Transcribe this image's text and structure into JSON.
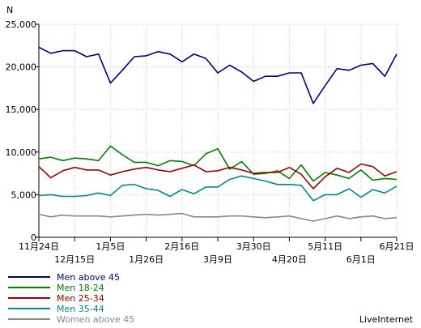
{
  "chart_data": {
    "type": "line",
    "title": "",
    "ylabel": "N",
    "xlabel": "",
    "ylim": [
      0,
      25000
    ],
    "yticks": [
      0,
      5000,
      10000,
      15000,
      20000,
      25000
    ],
    "ytick_labels": [
      "0",
      "5,000",
      "10,000",
      "15,000",
      "20,000",
      "25,000"
    ],
    "grid": true,
    "legend_position": "bottom-left",
    "watermark": "LiveInternet",
    "x_count": 31,
    "xtick_rows": [
      {
        "labels": [
          {
            "i": 0,
            "text": "11月24日"
          },
          {
            "i": 6,
            "text": "1月5日"
          },
          {
            "i": 12,
            "text": "2月16日"
          },
          {
            "i": 18,
            "text": "3月30日"
          },
          {
            "i": 24,
            "text": "5月11日"
          },
          {
            "i": 30,
            "text": "6月21日"
          }
        ]
      },
      {
        "labels": [
          {
            "i": 3,
            "text": "12月15日"
          },
          {
            "i": 9,
            "text": "1月26日"
          },
          {
            "i": 15,
            "text": "3月9日"
          },
          {
            "i": 21,
            "text": "4月20日"
          },
          {
            "i": 27,
            "text": "6月1日"
          }
        ]
      }
    ],
    "series": [
      {
        "name": "Men above 45",
        "color": "#000080",
        "values": [
          22300,
          21600,
          21900,
          21900,
          21200,
          21500,
          18100,
          19600,
          21200,
          21300,
          21800,
          21500,
          20600,
          21500,
          21000,
          19300,
          20200,
          19400,
          18300,
          18900,
          18900,
          19300,
          19300,
          15700,
          17800,
          19800,
          19600,
          20200,
          20400,
          18900,
          21500
        ]
      },
      {
        "name": "Men 18-24",
        "color": "#008000",
        "values": [
          9200,
          9400,
          9000,
          9300,
          9200,
          9000,
          10700,
          9700,
          8800,
          8800,
          8400,
          9000,
          8900,
          8400,
          9800,
          10400,
          8000,
          8900,
          7400,
          7500,
          7800,
          6900,
          8500,
          6600,
          7600,
          7300,
          6900,
          7900,
          6700,
          6900,
          6800
        ]
      },
      {
        "name": "Men 25-34",
        "color": "#a00000",
        "values": [
          8300,
          7000,
          7800,
          8200,
          7900,
          7900,
          7300,
          7700,
          8000,
          8200,
          7900,
          7700,
          8100,
          8500,
          7700,
          7800,
          8200,
          7900,
          7500,
          7600,
          7600,
          8200,
          7400,
          5700,
          7100,
          8100,
          7600,
          8600,
          8300,
          7200,
          7700
        ]
      },
      {
        "name": "Men 35-44",
        "color": "#008b8b",
        "values": [
          4900,
          5000,
          4800,
          4800,
          4900,
          5200,
          4900,
          6100,
          6200,
          5700,
          5500,
          4800,
          5600,
          5100,
          5900,
          5900,
          6800,
          7200,
          6900,
          6600,
          6200,
          6200,
          6100,
          4300,
          5000,
          5000,
          5700,
          4700,
          5600,
          5200,
          6000
        ]
      },
      {
        "name": "Women above 45",
        "color": "#888888",
        "values": [
          2700,
          2400,
          2600,
          2500,
          2500,
          2500,
          2400,
          2500,
          2600,
          2700,
          2600,
          2700,
          2800,
          2400,
          2400,
          2400,
          2500,
          2500,
          2400,
          2300,
          2400,
          2500,
          2200,
          1900,
          2200,
          2500,
          2200,
          2400,
          2500,
          2200,
          2300
        ]
      }
    ]
  }
}
